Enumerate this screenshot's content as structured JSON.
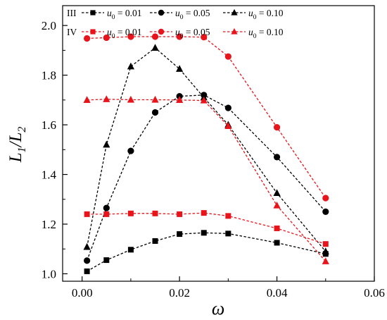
{
  "chart_data": {
    "type": "line",
    "xlabel": "ω",
    "ylabel": "L1/L2",
    "xlim": [
      -0.004,
      0.06
    ],
    "ylim": [
      0.97,
      2.08
    ],
    "x_ticks": [
      0.0,
      0.02,
      0.04,
      0.06
    ],
    "y_ticks": [
      1.0,
      1.2,
      1.4,
      1.6,
      1.8,
      2.0
    ],
    "x_tick_labels": [
      "0.00",
      "0.02",
      "0.04",
      "0.06"
    ],
    "y_tick_labels": [
      "1.0",
      "1.2",
      "1.4",
      "1.6",
      "1.8",
      "2.0"
    ],
    "grid": false,
    "legend_position": "top",
    "legend_groups": [
      "III",
      "IV"
    ],
    "series": [
      {
        "name": "u0 = 0.01",
        "group": "III",
        "color": "#000000",
        "marker": "square",
        "x": [
          0.001,
          0.005,
          0.01,
          0.015,
          0.02,
          0.025,
          0.03,
          0.04,
          0.05
        ],
        "y": [
          1.01,
          1.055,
          1.097,
          1.132,
          1.16,
          1.165,
          1.162,
          1.125,
          1.08
        ]
      },
      {
        "name": "u0 = 0.05",
        "group": "III",
        "color": "#000000",
        "marker": "circle",
        "x": [
          0.001,
          0.005,
          0.01,
          0.015,
          0.02,
          0.025,
          0.03,
          0.04,
          0.05
        ],
        "y": [
          1.053,
          1.265,
          1.495,
          1.65,
          1.715,
          1.72,
          1.668,
          1.47,
          1.25
        ]
      },
      {
        "name": "u0 = 0.10",
        "group": "III",
        "color": "#000000",
        "marker": "triangle",
        "x": [
          0.001,
          0.005,
          0.01,
          0.015,
          0.02,
          0.025,
          0.03,
          0.04,
          0.05
        ],
        "y": [
          1.108,
          1.52,
          1.835,
          1.91,
          1.825,
          1.71,
          1.6,
          1.325,
          1.09
        ]
      },
      {
        "name": "u0 = 0.01",
        "group": "IV",
        "color": "#e8141c",
        "marker": "square",
        "x": [
          0.001,
          0.005,
          0.01,
          0.015,
          0.02,
          0.025,
          0.03,
          0.04,
          0.05
        ],
        "y": [
          1.24,
          1.24,
          1.243,
          1.243,
          1.24,
          1.245,
          1.233,
          1.183,
          1.12
        ]
      },
      {
        "name": "u0 = 0.05",
        "group": "IV",
        "color": "#e8141c",
        "marker": "circle",
        "x": [
          0.001,
          0.005,
          0.01,
          0.015,
          0.02,
          0.025,
          0.03,
          0.04,
          0.05
        ],
        "y": [
          1.948,
          1.951,
          1.955,
          1.955,
          1.955,
          1.953,
          1.875,
          1.59,
          1.305
        ]
      },
      {
        "name": "u0 = 0.10",
        "group": "IV",
        "color": "#e8141c",
        "marker": "triangle",
        "x": [
          0.001,
          0.005,
          0.01,
          0.015,
          0.02,
          0.025,
          0.03,
          0.04,
          0.05
        ],
        "y": [
          1.7,
          1.703,
          1.701,
          1.701,
          1.7,
          1.698,
          1.595,
          1.275,
          1.05
        ]
      }
    ]
  }
}
